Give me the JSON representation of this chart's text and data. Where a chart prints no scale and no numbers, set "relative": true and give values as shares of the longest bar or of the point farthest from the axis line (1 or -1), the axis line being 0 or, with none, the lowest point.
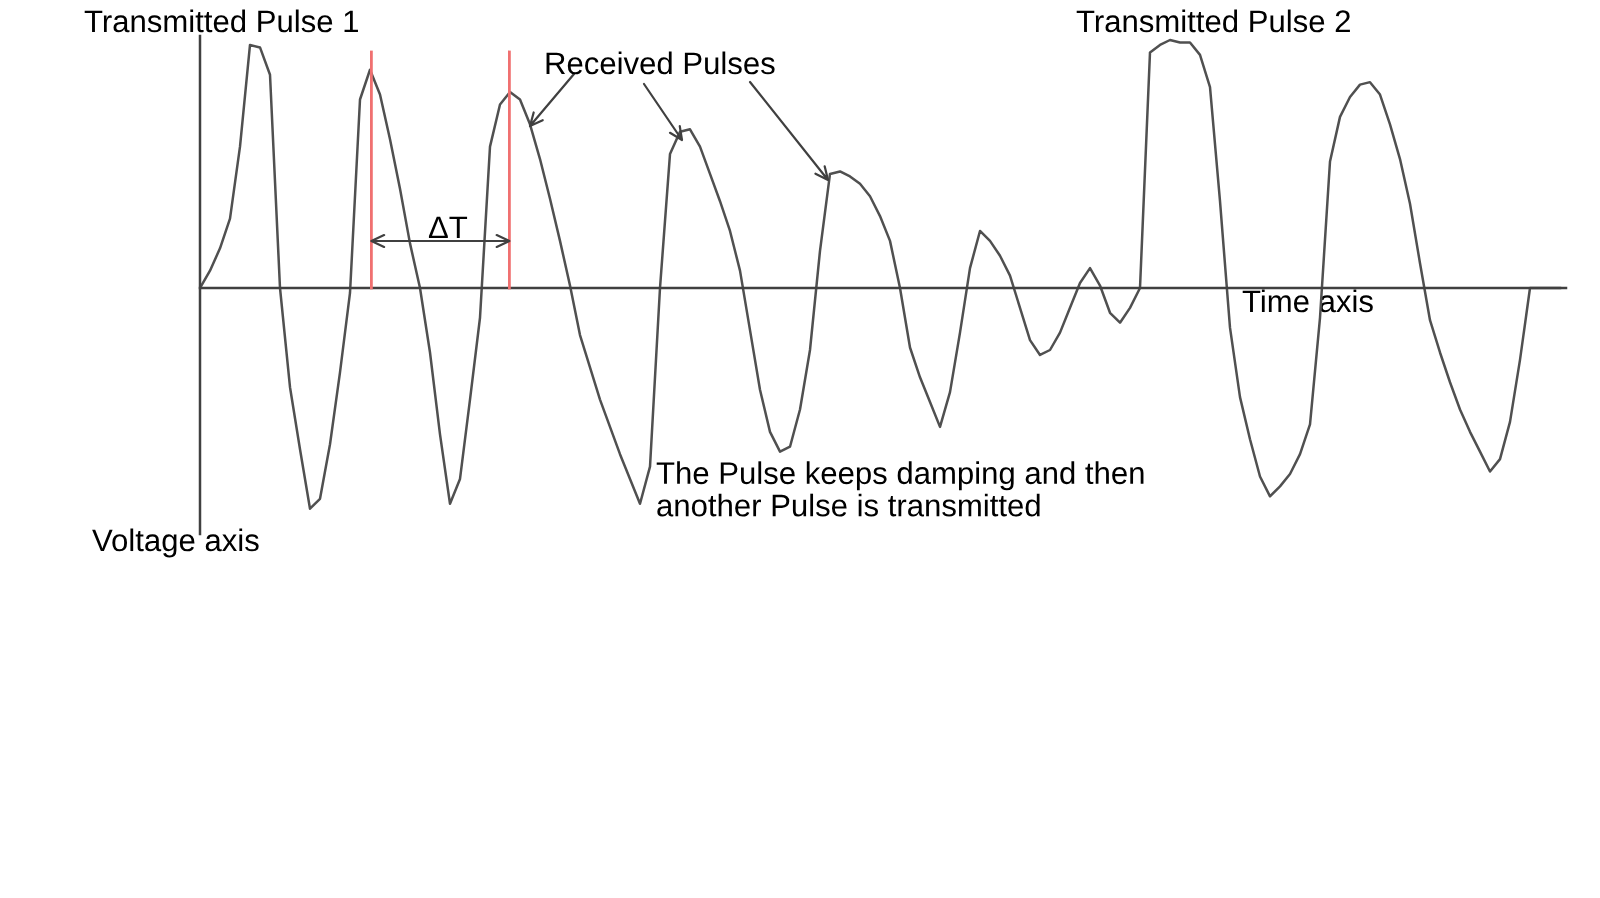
{
  "chart_data": {
    "type": "line",
    "relative": true,
    "categories": [
      null,
      null,
      null,
      null,
      null,
      null,
      null,
      null,
      null,
      null,
      null,
      null,
      null,
      null,
      null,
      null,
      null,
      null,
      null,
      null,
      null,
      null,
      null,
      null,
      null,
      null,
      null,
      null,
      null,
      null,
      null,
      null,
      null,
      null,
      null,
      null,
      null,
      null,
      null,
      null,
      null,
      null,
      null,
      null,
      null,
      null,
      null,
      null,
      null,
      null,
      null,
      null,
      null,
      null,
      null,
      null,
      null,
      null,
      null,
      null,
      null,
      null,
      null,
      null,
      null,
      null,
      null,
      null,
      null,
      null,
      null,
      null,
      null,
      null,
      null,
      null,
      null,
      null,
      null,
      null,
      null,
      null,
      null,
      null,
      null,
      null,
      null,
      null,
      null,
      null,
      null,
      null,
      null,
      null,
      null,
      null,
      null,
      null,
      null,
      null,
      null,
      null,
      null,
      null,
      null,
      null,
      null,
      null,
      null,
      null,
      null,
      null,
      null,
      null,
      null,
      null,
      null,
      null,
      null,
      null,
      null,
      null,
      null,
      null,
      null,
      null,
      null,
      null,
      null,
      null,
      null,
      null,
      null,
      null,
      null,
      null,
      null
    ],
    "series": [
      {
        "color": "#505050",
        "values": [
          0,
          0.07,
          0.16,
          0.28,
          0.57,
          0.98,
          0.97,
          0.86,
          0,
          -0.4,
          -0.65,
          -0.89,
          -0.85,
          -0.63,
          -0.34,
          -0.02,
          0.76,
          0.88,
          0.78,
          0.6,
          0.4,
          0.18,
          0,
          -0.26,
          -0.59,
          -0.87,
          -0.77,
          -0.45,
          -0.12,
          0.57,
          0.74,
          0.79,
          0.76,
          0.66,
          0.52,
          0.36,
          0.19,
          0.01,
          -0.19,
          -0.32,
          -0.45,
          -0.56,
          -0.67,
          -0.77,
          -0.87,
          -0.72,
          0,
          0.54,
          0.63,
          0.64,
          0.57,
          0.46,
          0.35,
          0.23,
          0.07,
          -0.17,
          -0.41,
          -0.58,
          -0.66,
          -0.64,
          -0.49,
          -0.25,
          0.15,
          0.46,
          0.47,
          0.45,
          0.42,
          0.37,
          0.29,
          0.19,
          0,
          -0.24,
          -0.36,
          -0.46,
          -0.56,
          -0.42,
          -0.18,
          0.08,
          0.23,
          0.19,
          0.13,
          0.05,
          -0.08,
          -0.21,
          -0.27,
          -0.25,
          -0.18,
          -0.08,
          0.02,
          0.08,
          0.01,
          -0.1,
          -0.14,
          -0.08,
          0,
          0.95,
          0.98,
          1.0,
          0.99,
          0.99,
          0.94,
          0.81,
          0.35,
          -0.16,
          -0.44,
          -0.61,
          -0.76,
          -0.84,
          -0.8,
          -0.75,
          -0.67,
          -0.55,
          -0.12,
          0.51,
          0.69,
          0.77,
          0.82,
          0.83,
          0.78,
          0.66,
          0.52,
          0.34,
          0.1,
          -0.13,
          -0.26,
          -0.38,
          -0.49,
          -0.58,
          -0.66,
          -0.74,
          -0.69,
          -0.54,
          -0.29,
          0,
          0,
          0,
          0
        ]
      }
    ],
    "xlabel": "Time axis",
    "ylabel": "Voltage axis",
    "annotations": [
      "Transmitted Pulse 1",
      "Received Pulses",
      "ΔT",
      "The Pulse keeps damping and then\nanother Pulse is transmitted",
      "Transmitted Pulse 2"
    ],
    "line_style": "solid"
  }
}
